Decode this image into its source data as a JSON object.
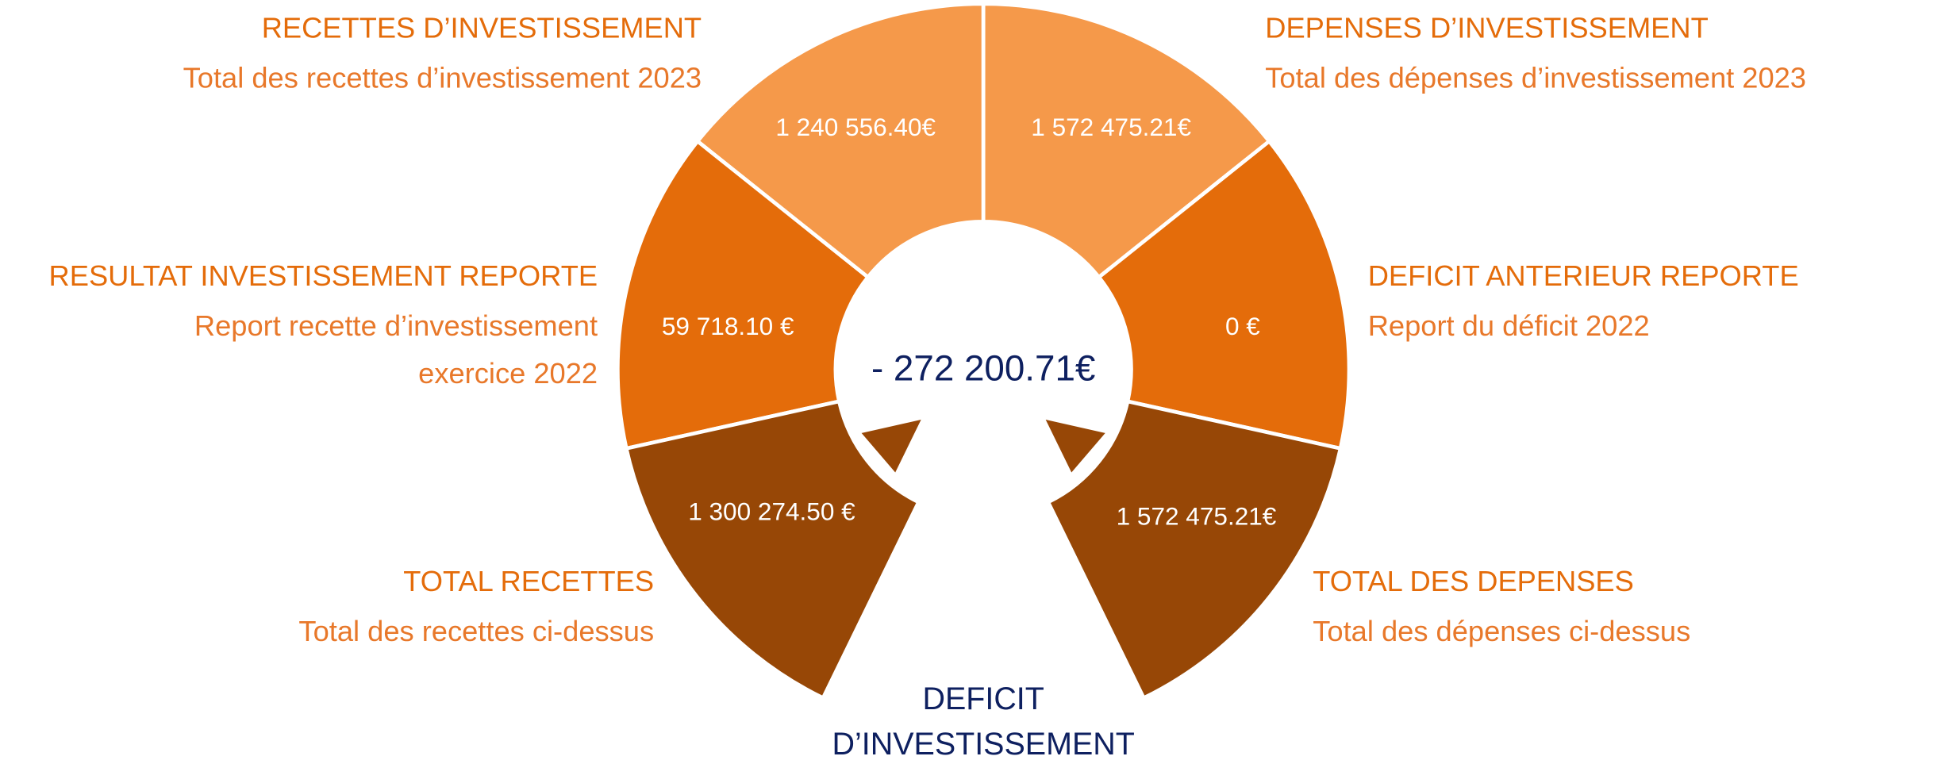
{
  "segments": [
    {
      "title": "RECETTES D’INVESTISSEMENT",
      "subtitle": [
        "Total des recettes d’investissement 2023"
      ],
      "value": "1 240 556.40€"
    },
    {
      "title": "DEPENSES D’INVESTISSEMENT",
      "subtitle": [
        "Total des dépenses d’investissement 2023"
      ],
      "value": "1 572 475.21€"
    },
    {
      "title": "RESULTAT INVESTISSEMENT REPORTE",
      "subtitle": [
        "Report recette d’investissement",
        "exercice 2022"
      ],
      "value": "59 718.10 €"
    },
    {
      "title": "DEFICIT ANTERIEUR REPORTE",
      "subtitle": [
        "Report du déficit 2022"
      ],
      "value": "0 €"
    },
    {
      "title": "TOTAL RECETTES",
      "subtitle": [
        "Total des recettes ci-dessus"
      ],
      "value": "1 300 274.50 €"
    },
    {
      "title": "TOTAL DES DEPENSES",
      "subtitle": [
        "Total des dépenses ci-dessus"
      ],
      "value": "1 572 475.21€"
    }
  ],
  "center": {
    "value": "- 272 200.71€",
    "label": [
      "DEFICIT",
      "D’INVESTISSEMENT"
    ]
  }
}
